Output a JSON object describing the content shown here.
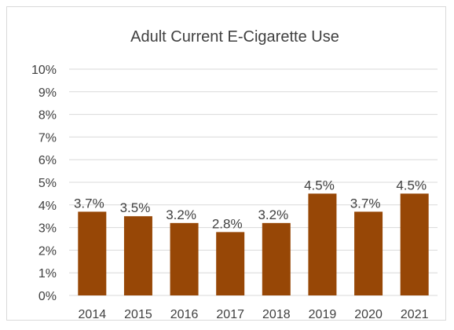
{
  "chart_data": {
    "type": "bar",
    "title": "Adult Current E-Cigarette Use",
    "xlabel": "",
    "ylabel": "",
    "categories": [
      "2014",
      "2015",
      "2016",
      "2017",
      "2018",
      "2019",
      "2020",
      "2021"
    ],
    "values": [
      3.7,
      3.5,
      3.2,
      2.8,
      3.2,
      4.5,
      3.7,
      4.5
    ],
    "data_labels": [
      "3.7%",
      "3.5%",
      "3.2%",
      "2.8%",
      "3.2%",
      "4.5%",
      "3.7%",
      "4.5%"
    ],
    "ylim": [
      0,
      10
    ],
    "yticks": [
      0,
      1,
      2,
      3,
      4,
      5,
      6,
      7,
      8,
      9,
      10
    ],
    "ytick_labels": [
      "0%",
      "1%",
      "2%",
      "3%",
      "4%",
      "5%",
      "6%",
      "7%",
      "8%",
      "9%",
      "10%"
    ],
    "grid": true,
    "legend": "none",
    "colors": {
      "bar": "#974706",
      "grid": "#d9d9d9",
      "text": "#404040",
      "border": "#d9d9d9"
    }
  }
}
